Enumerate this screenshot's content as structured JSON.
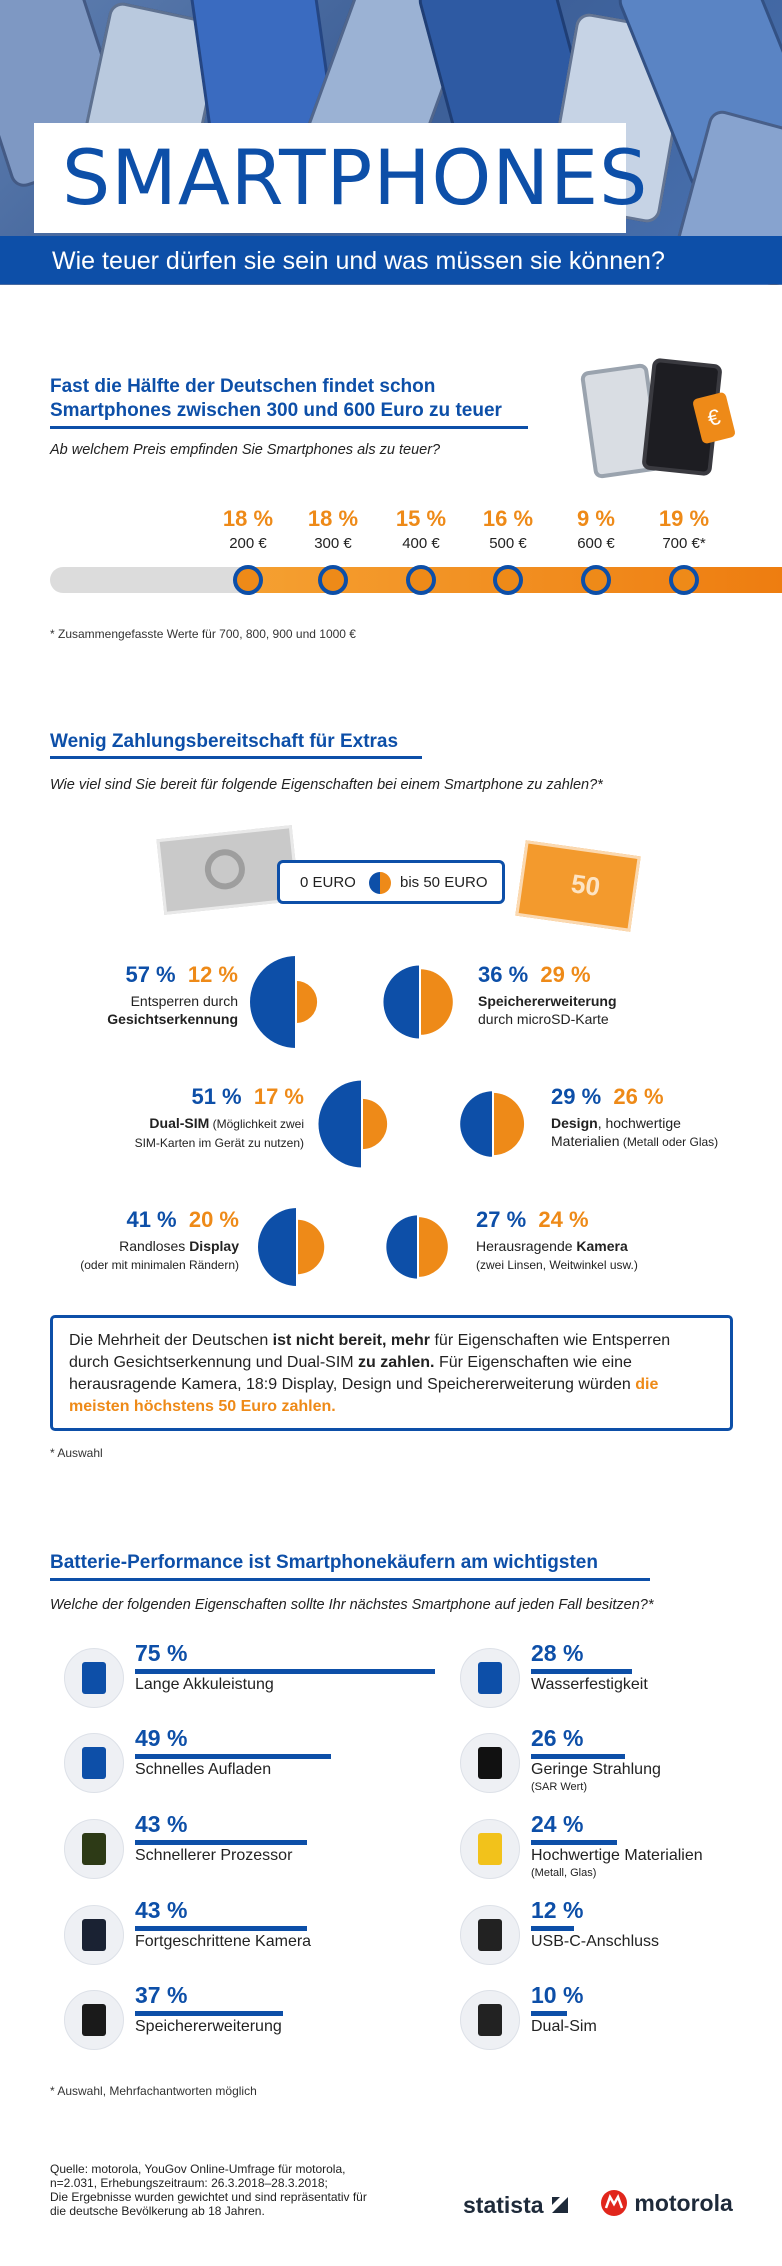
{
  "header": {
    "title": "SMARTPHONES",
    "subtitle": "Wie teuer dürfen sie sein und was müssen sie können?"
  },
  "section1": {
    "title_line1": "Fast die Hälfte der Deutschen findet schon",
    "title_line2": "Smartphones zwischen 300 und 600 Euro zu teuer",
    "question": "Ab welchem Preis empfinden Sie Smartphones als zu teuer?",
    "footnote": "* Zusammengefasste Werte für 700, 800, 900 und 1000 €"
  },
  "section2": {
    "title": "Wenig Zahlungsbereitschaft für Extras",
    "question": "Wie viel sind Sie bereit für folgende Eigenschaften bei einem Smartphone zu zahlen?*",
    "legend_left": "0 EURO",
    "legend_right": "bis 50 EURO",
    "note_bill": "50",
    "summary_p1": "Die Mehrheit der Deutschen ",
    "summary_b1": "ist nicht bereit, mehr",
    "summary_p2": " für Eigenschaften wie Entsperren durch Gesichtserkennung und Dual-SIM ",
    "summary_b2": "zu zahlen.",
    "summary_p3": " Für Eigenschaften wie eine herausragende Kamera, 18:9 Display, Design und Speichererweiterung würden ",
    "summary_o1": "die meisten höchstens 50 Euro zahlen.",
    "footnote": "* Auswahl"
  },
  "section3": {
    "title": "Batterie-Performance ist Smartphonekäufern am wichtigsten",
    "question": "Welche der folgenden Eigenschaften sollte Ihr nächstes Smartphone auf jeden Fall besitzen?*",
    "footnote": "* Auswahl, Mehrfachantworten möglich"
  },
  "footer": {
    "source_line1": "Quelle: motorola, YouGov Online-Umfrage für motorola,",
    "source_line2": "n=2.031, Erhebungszeitraum: 26.3.2018–28.3.2018;",
    "source_line3": "Die Ergebnisse wurden gewichtet und sind repräsentativ für",
    "source_line4": "die deutsche Bevölkerung ab 18 Jahren.",
    "brand1": "statista",
    "brand2": "motorola"
  },
  "colors": {
    "blue": "#0d4fa8",
    "orange": "#ee8a18",
    "grey": "#dcdcdc"
  },
  "chart_data": [
    {
      "type": "bar",
      "title": "Ab welchem Preis empfinden Sie Smartphones als zu teuer?",
      "categories": [
        "200 €",
        "300 €",
        "400 €",
        "500 €",
        "600 €",
        "700 €*"
      ],
      "values": [
        18,
        18,
        15,
        16,
        9,
        19
      ],
      "value_labels": [
        "18 %",
        "18 %",
        "15 %",
        "16 %",
        "9 %",
        "19 %"
      ],
      "unit": "%"
    },
    {
      "type": "bar",
      "title": "Wie viel sind Sie bereit für folgende Eigenschaften bei einem Smartphone zu zahlen?*",
      "series_names": [
        "0 EURO",
        "bis 50 EURO"
      ],
      "items": [
        {
          "pct0": "57 %",
          "pct50": "12 %",
          "v0": 57,
          "v50": 12,
          "side": "left",
          "line1": "Entsperren durch",
          "line1_bold": "",
          "line2": "",
          "line2_bold": "Gesichtserkennung",
          "sub": ""
        },
        {
          "pct0": "36 %",
          "pct50": "29 %",
          "v0": 36,
          "v50": 29,
          "side": "right",
          "line1": "",
          "line1_bold": "Speichererweiterung",
          "line2": "durch microSD-Karte",
          "line2_bold": "",
          "sub": ""
        },
        {
          "pct0": "51 %",
          "pct50": "17 %",
          "v0": 51,
          "v50": 17,
          "side": "left",
          "line1": " (Möglichkeit zwei",
          "line1_bold": "Dual-SIM",
          "line2": "SIM-Karten im Gerät zu nutzen)",
          "line2_bold": "",
          "sub": ""
        },
        {
          "pct0": "29 %",
          "pct50": "26 %",
          "v0": 29,
          "v50": 26,
          "side": "right",
          "line1": ", hochwertige",
          "line1_bold": "Design",
          "line2": "Materialien",
          "line2_bold": "",
          "sub": " (Metall oder Glas)"
        },
        {
          "pct0": "41 %",
          "pct50": "20 %",
          "v0": 41,
          "v50": 20,
          "side": "left",
          "line1": "Randloses ",
          "line1_bold": "Display",
          "line2": "(oder mit minimalen Rändern)",
          "line2_bold": "",
          "sub": ""
        },
        {
          "pct0": "27 %",
          "pct50": "24 %",
          "v0": 27,
          "v50": 24,
          "side": "right",
          "line1": "Herausragende ",
          "line1_bold": "Kamera",
          "line2": "(zwei Linsen, Weitwinkel usw.)",
          "line2_bold": "",
          "sub": ""
        }
      ]
    },
    {
      "type": "bar",
      "title": "Welche der folgenden Eigenschaften sollte Ihr nächstes Smartphone auf jeden Fall besitzen?*",
      "left": [
        {
          "label": "Lange Akkuleistung",
          "pct": "75 %",
          "value": 75,
          "sub": "",
          "icon": "battery-icon"
        },
        {
          "label": "Schnelles Aufladen",
          "pct": "49 %",
          "value": 49,
          "sub": "",
          "icon": "charging-clock-icon"
        },
        {
          "label": "Schnellerer Prozessor",
          "pct": "43 %",
          "value": 43,
          "sub": "",
          "icon": "processor-icon"
        },
        {
          "label": "Fortgeschrittene Kamera",
          "pct": "43 %",
          "value": 43,
          "sub": "",
          "icon": "camera-lens-icon"
        },
        {
          "label": "Speichererweiterung",
          "pct": "37 %",
          "value": 37,
          "sub": "",
          "icon": "sd-card-icon"
        }
      ],
      "right": [
        {
          "label": "Wasserfestigkeit",
          "pct": "28 %",
          "value": 28,
          "sub": "",
          "icon": "water-drops-icon"
        },
        {
          "label": "Geringe Strahlung",
          "pct": "26 %",
          "value": 26,
          "sub": "(SAR Wert)",
          "icon": "radiation-icon"
        },
        {
          "label": "Hochwertige Materialien",
          "pct": "24 %",
          "value": 24,
          "sub": "(Metall, Glas)",
          "icon": "materials-star-icon"
        },
        {
          "label": "USB-C-Anschluss",
          "pct": "12 %",
          "value": 12,
          "sub": "",
          "icon": "usb-c-icon"
        },
        {
          "label": "Dual-Sim",
          "pct": "10 %",
          "value": 10,
          "sub": "",
          "icon": "dual-sim-icon"
        }
      ]
    }
  ]
}
